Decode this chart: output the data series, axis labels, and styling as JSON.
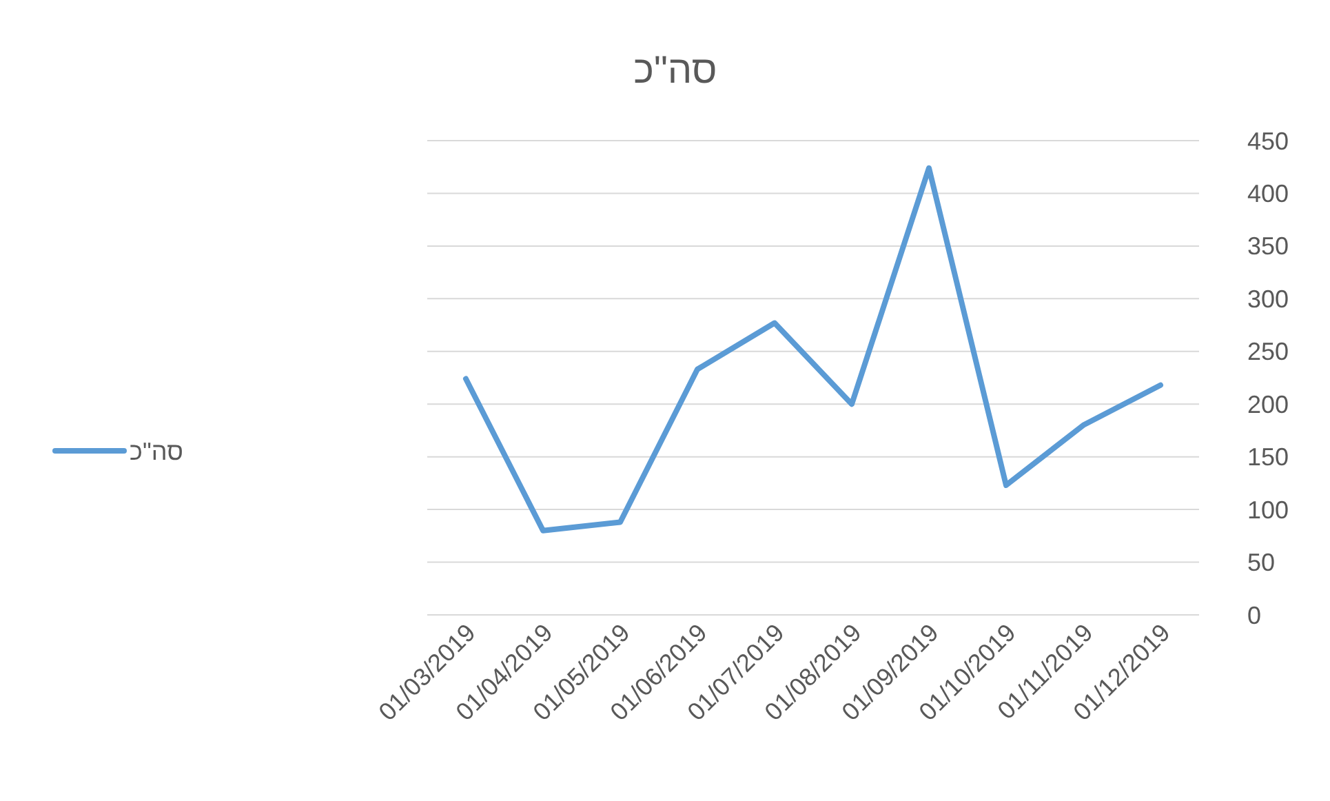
{
  "chart_data": {
    "type": "line",
    "title": "סה\"כ",
    "categories": [
      "01/03/2019",
      "01/04/2019",
      "01/05/2019",
      "01/06/2019",
      "01/07/2019",
      "01/08/2019",
      "01/09/2019",
      "01/10/2019",
      "01/11/2019",
      "01/12/2019"
    ],
    "series": [
      {
        "name": "סה\"כ",
        "color": "#5b9bd5",
        "values": [
          224,
          80,
          88,
          233,
          277,
          200,
          424,
          123,
          180,
          218
        ]
      }
    ],
    "ylim": [
      0,
      450
    ],
    "yticks": [
      0,
      50,
      100,
      150,
      200,
      250,
      300,
      350,
      400,
      450
    ],
    "grid": "y",
    "legend": "left",
    "marker": "none",
    "line_style": "solid"
  }
}
